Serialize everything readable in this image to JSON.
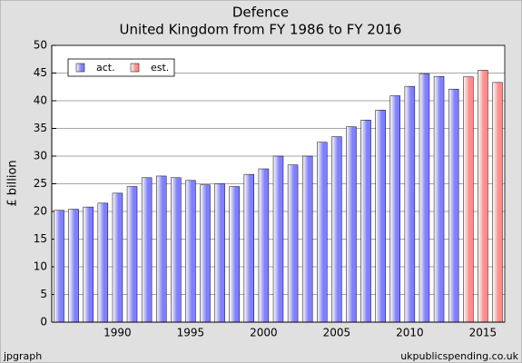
{
  "chart_data": {
    "type": "bar",
    "title": "Defence",
    "subtitle": "United Kingdom from FY 1986 to FY 2016",
    "y_label": "£ billion",
    "footer_left": "jpgraph",
    "footer_right": "ukpublicspending.co.uk",
    "x": [
      1986,
      1987,
      1988,
      1989,
      1990,
      1991,
      1992,
      1993,
      1994,
      1995,
      1996,
      1997,
      1998,
      1999,
      2000,
      2001,
      2002,
      2003,
      2004,
      2005,
      2006,
      2007,
      2008,
      2009,
      2010,
      2011,
      2012,
      2013,
      2014,
      2015,
      2016
    ],
    "xlim": [
      1985.5,
      2016.5
    ],
    "xticks": [
      1990,
      1995,
      2000,
      2005,
      2010,
      2015
    ],
    "ylim": [
      0,
      50
    ],
    "yticks": [
      0,
      5,
      10,
      15,
      20,
      25,
      30,
      35,
      40,
      45,
      50
    ],
    "grid": true,
    "legend": "top-left",
    "series": [
      {
        "name": "act.",
        "color": "#8080ff",
        "values": [
          20.2,
          20.4,
          20.8,
          21.5,
          23.3,
          24.5,
          26.1,
          26.4,
          26.1,
          25.6,
          24.8,
          25.0,
          24.5,
          26.7,
          27.7,
          30.0,
          28.4,
          30.0,
          32.5,
          33.5,
          35.3,
          36.5,
          38.3,
          40.9,
          42.6,
          44.9,
          44.4,
          42.1,
          null,
          null,
          null
        ]
      },
      {
        "name": "est.",
        "color": "#ff8c8c",
        "values": [
          null,
          null,
          null,
          null,
          null,
          null,
          null,
          null,
          null,
          null,
          null,
          null,
          null,
          null,
          null,
          null,
          null,
          null,
          null,
          null,
          null,
          null,
          null,
          null,
          null,
          null,
          null,
          null,
          44.3,
          45.5,
          43.3
        ]
      }
    ]
  }
}
